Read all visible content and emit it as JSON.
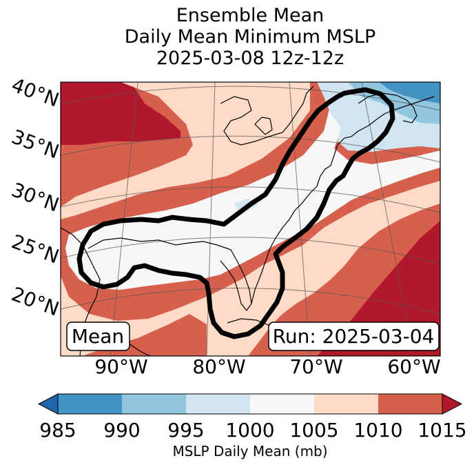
{
  "title": {
    "line1": "Ensemble Mean",
    "line2": "Daily Mean Minimum MSLP",
    "line3": "2025-03-08 12z-12z"
  },
  "map": {
    "lat_labels": [
      "40°N",
      "35°N",
      "30°N",
      "25°N",
      "20°N"
    ],
    "lon_labels": [
      "90°W",
      "80°W",
      "70°W",
      "60°W"
    ],
    "mean_box": "Mean",
    "run_box": "Run: 2025-03-04",
    "colors": {
      "c985": "#2166ac",
      "c990": "#4393c3",
      "c995": "#92c5de",
      "c1000": "#d1e5f0",
      "c1005": "#f7f7f7",
      "c1010": "#fddbc7",
      "c1015": "#d6604d",
      "c1020": "#b2182b"
    }
  },
  "colorbar": {
    "ticks": [
      "985",
      "990",
      "995",
      "1000",
      "1005",
      "1010",
      "1015"
    ],
    "label": "MSLP Daily Mean (mb)"
  }
}
